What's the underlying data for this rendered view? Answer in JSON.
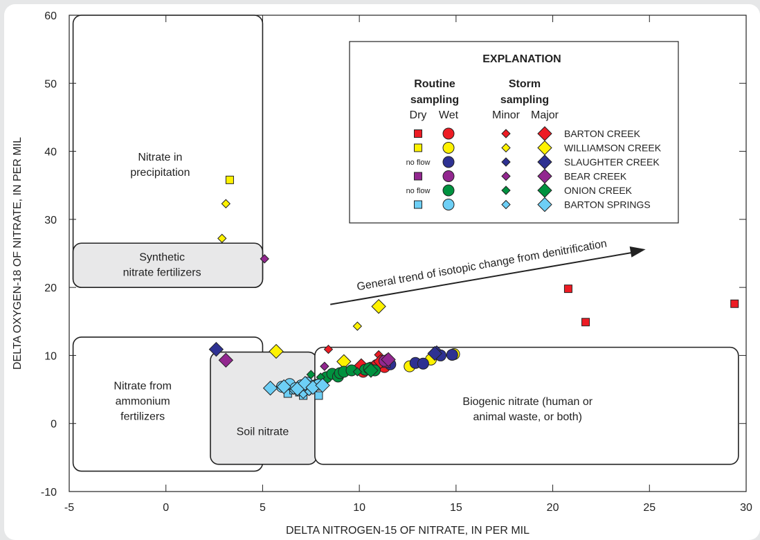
{
  "chart_data": {
    "type": "scatter",
    "xlabel": "DELTA NITROGEN-15 OF NITRATE, IN PER MIL",
    "ylabel": "DELTA OXYGEN-18 OF NITRATE, IN PER MIL",
    "xlim": [
      -5,
      30
    ],
    "ylim": [
      -10,
      60
    ],
    "x_ticks": [
      "-5",
      "0",
      "5",
      "10",
      "15",
      "20",
      "25",
      "30"
    ],
    "y_ticks": [
      "-10",
      "0",
      "10",
      "20",
      "30",
      "40",
      "50",
      "60"
    ],
    "grid": false,
    "regions": [
      {
        "label": "Nitrate in\nprecipitation",
        "x0": -4.8,
        "x1": 5.0,
        "y0": 20,
        "y1": 60,
        "fill": "#ffffff"
      },
      {
        "label": "Synthetic\nnitrate fertilizers",
        "x0": -4.8,
        "x1": 5.0,
        "y0": 20,
        "y1": 26.5,
        "fill": "#e8e8e9"
      },
      {
        "label": "Nitrate from\nammonium\nfertilizers",
        "x0": -4.8,
        "x1": 5.0,
        "y0": -7,
        "y1": 12.7,
        "fill": "#ffffff"
      },
      {
        "label": "Soil nitrate",
        "x0": 2.3,
        "x1": 7.8,
        "y0": -6,
        "y1": 10.5,
        "fill": "#e8e8e9"
      },
      {
        "label": "Biogenic nitrate (human or\nanimal waste, or both)",
        "x0": 7.7,
        "x1": 29.6,
        "y0": -6,
        "y1": 11.2,
        "fill": "#ffffff"
      }
    ],
    "arrow": {
      "label": "General trend of isotopic change from denitrification",
      "from": [
        8.5,
        17.5
      ],
      "to": [
        24.8,
        25.6
      ]
    },
    "legend": {
      "title": "EXPLANATION",
      "routine_header": [
        "Routine",
        "sampling"
      ],
      "storm_header": [
        "Storm",
        "sampling"
      ],
      "col_labels": [
        "Dry",
        "Wet",
        "Minor",
        "Major"
      ],
      "no_flow": "no flow",
      "placement": "top-right"
    },
    "sites": [
      {
        "name": "BARTON CREEK",
        "color": "#ed1c24",
        "dry": true
      },
      {
        "name": "WILLIAMSON CREEK",
        "color": "#fff200",
        "dry": true
      },
      {
        "name": "SLAUGHTER CREEK",
        "color": "#2e3192",
        "dry": false
      },
      {
        "name": "BEAR CREEK",
        "color": "#92278f",
        "dry": true
      },
      {
        "name": "ONION CREEK",
        "color": "#00923f",
        "dry": false
      },
      {
        "name": "BARTON SPRINGS",
        "color": "#6dcff6",
        "dry": true
      }
    ],
    "series": [
      {
        "site": 0,
        "kind": "dry",
        "x": [
          20.8,
          21.7,
          29.4
        ],
        "y": [
          19.8,
          14.9,
          17.6
        ]
      },
      {
        "site": 0,
        "kind": "wet",
        "x": [
          10.2,
          10.6,
          10.9,
          11.3
        ],
        "y": [
          7.6,
          8.2,
          8.6,
          8.3
        ]
      },
      {
        "site": 0,
        "kind": "minor",
        "x": [
          8.4,
          11.0,
          10.7
        ],
        "y": [
          10.9,
          10.1,
          8.0
        ]
      },
      {
        "site": 0,
        "kind": "major",
        "x": [
          10.1,
          11.1
        ],
        "y": [
          8.5,
          9.1
        ]
      },
      {
        "site": 1,
        "kind": "dry",
        "x": [
          3.3
        ],
        "y": [
          35.8
        ]
      },
      {
        "site": 1,
        "kind": "wet",
        "x": [
          12.6,
          13.7,
          14.9
        ],
        "y": [
          8.4,
          9.4,
          10.2
        ]
      },
      {
        "site": 1,
        "kind": "minor",
        "x": [
          3.1,
          2.9,
          9.9
        ],
        "y": [
          32.3,
          27.2,
          14.3
        ]
      },
      {
        "site": 1,
        "kind": "major",
        "x": [
          5.7,
          11.0,
          9.2
        ],
        "y": [
          10.6,
          17.2,
          9.1
        ]
      },
      {
        "site": 2,
        "kind": "wet",
        "x": [
          11.6,
          12.9,
          13.3,
          14.2,
          14.8
        ],
        "y": [
          8.7,
          8.9,
          8.8,
          10.0,
          10.1
        ]
      },
      {
        "site": 2,
        "kind": "minor",
        "x": [
          14.0,
          11.4
        ],
        "y": [
          10.8,
          9.6
        ]
      },
      {
        "site": 2,
        "kind": "major",
        "x": [
          2.6,
          13.9
        ],
        "y": [
          10.9,
          10.3
        ]
      },
      {
        "site": 3,
        "kind": "dry",
        "x": [
          11.4
        ],
        "y": [
          8.8
        ]
      },
      {
        "site": 3,
        "kind": "wet",
        "x": [
          11.3
        ],
        "y": [
          9.2
        ]
      },
      {
        "site": 3,
        "kind": "minor",
        "x": [
          5.1,
          8.2
        ],
        "y": [
          24.2,
          8.4
        ]
      },
      {
        "site": 3,
        "kind": "major",
        "x": [
          3.1,
          11.5
        ],
        "y": [
          9.3,
          9.4
        ]
      },
      {
        "site": 4,
        "kind": "wet",
        "x": [
          7.8,
          8.1,
          8.3,
          8.6,
          8.9,
          9.0,
          9.2,
          9.6,
          10.3,
          10.5,
          10.8
        ],
        "y": [
          5.7,
          6.2,
          6.8,
          7.3,
          6.9,
          7.4,
          7.6,
          7.8,
          7.9,
          8.1,
          7.8
        ]
      },
      {
        "site": 4,
        "kind": "minor",
        "x": [
          7.5,
          8.0,
          9.9
        ],
        "y": [
          7.2,
          6.8,
          7.6
        ]
      },
      {
        "site": 4,
        "kind": "major",
        "x": [
          10.6
        ],
        "y": [
          7.8
        ]
      },
      {
        "site": 5,
        "kind": "dry",
        "x": [
          6.3,
          6.6,
          6.9,
          7.1,
          7.3,
          7.6,
          7.9
        ],
        "y": [
          4.4,
          4.9,
          4.6,
          4.1,
          4.8,
          5.2,
          4.1
        ]
      },
      {
        "site": 5,
        "kind": "wet",
        "x": [
          6.0,
          6.4,
          6.7,
          7.0,
          7.3,
          7.6,
          7.9
        ],
        "y": [
          5.4,
          5.8,
          5.2,
          5.6,
          6.0,
          5.5,
          5.7
        ]
      },
      {
        "site": 5,
        "kind": "minor",
        "x": [
          6.6,
          7.1,
          7.4
        ],
        "y": [
          4.9,
          4.3,
          4.7
        ]
      },
      {
        "site": 5,
        "kind": "major",
        "x": [
          5.4,
          6.1,
          6.8,
          7.2,
          7.6,
          8.1
        ],
        "y": [
          5.2,
          5.4,
          5.1,
          5.9,
          5.3,
          5.6
        ]
      }
    ]
  }
}
